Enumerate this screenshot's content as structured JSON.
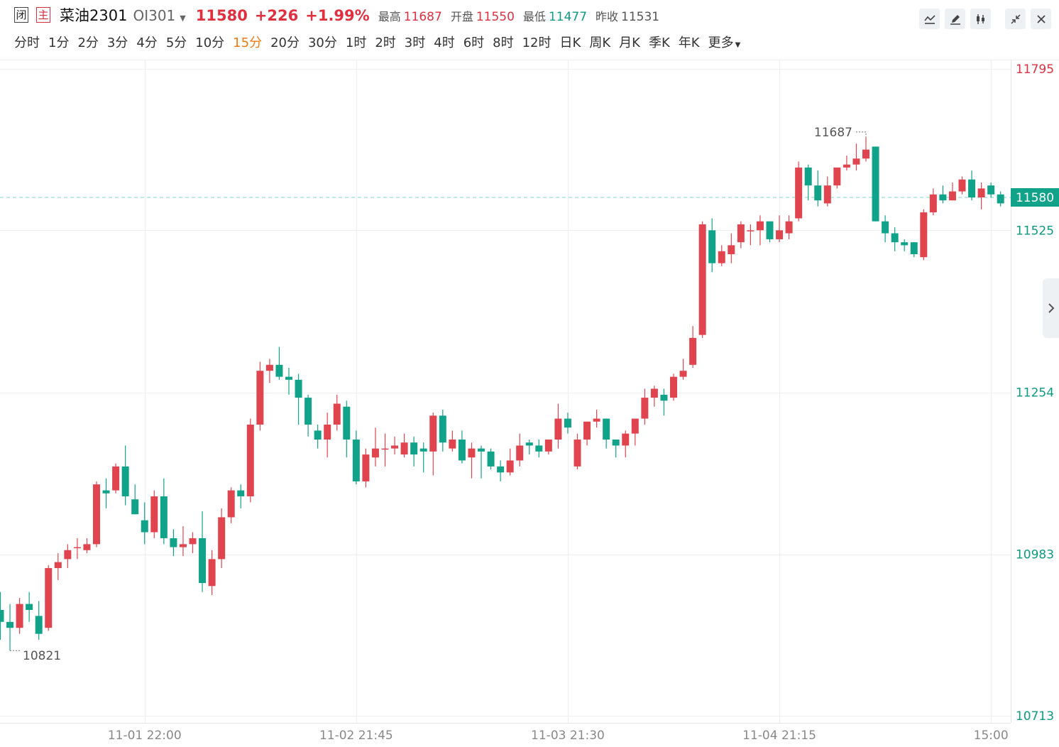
{
  "header": {
    "badge_closed": "闭",
    "badge_main": "主",
    "name": "菜油2301",
    "code": "OI301",
    "price": "11580",
    "change": "+226",
    "change_pct": "+1.99%",
    "high_label": "最高",
    "high_value": "11687",
    "open_label": "开盘",
    "open_value": "11550",
    "low_label": "最低",
    "low_value": "11477",
    "prev_label": "昨收",
    "prev_value": "11531"
  },
  "toolbar": {
    "icons": [
      "line-chart-icon",
      "draw-icon",
      "candlestick-icon",
      "collapse-icon",
      "close-icon"
    ]
  },
  "periods": {
    "items": [
      "分时",
      "1分",
      "2分",
      "3分",
      "4分",
      "5分",
      "10分",
      "15分",
      "20分",
      "30分",
      "1时",
      "2时",
      "3时",
      "4时",
      "6时",
      "8时",
      "12时",
      "日K",
      "周K",
      "月K",
      "季K",
      "年K"
    ],
    "more": "更多",
    "active": "15分"
  },
  "colors": {
    "up": "#e0454f",
    "down": "#10a38a",
    "accent": "#f07a12",
    "grid": "#eeeeee"
  },
  "chart_data": {
    "type": "candlestick",
    "y_ticks": [
      11795,
      11525,
      11254,
      10983,
      10713
    ],
    "ylim": [
      10713,
      11795
    ],
    "x_ticks": [
      "11-01 22:00",
      "11-02 21:45",
      "11-03 21:30",
      "11-04 21:15",
      "15:00"
    ],
    "x_tick_index": [
      15,
      37,
      59,
      81,
      103
    ],
    "current_price": 11580,
    "max_label": "11687",
    "min_label": "10821",
    "grid": true,
    "candles": [
      [
        10890,
        10870,
        10920,
        10840
      ],
      [
        10870,
        10860,
        10900,
        10822
      ],
      [
        10860,
        10900,
        10910,
        10850
      ],
      [
        10900,
        10890,
        10920,
        10870
      ],
      [
        10880,
        10850,
        10905,
        10840
      ],
      [
        10860,
        10960,
        10965,
        10855
      ],
      [
        10960,
        10970,
        10985,
        10940
      ],
      [
        10975,
        10990,
        11000,
        10960
      ],
      [
        10995,
        10995,
        11010,
        10975
      ],
      [
        10990,
        11000,
        11010,
        10985
      ],
      [
        11000,
        11100,
        11105,
        10995
      ],
      [
        11090,
        11085,
        11110,
        11060
      ],
      [
        11090,
        11130,
        11135,
        11085
      ],
      [
        11130,
        11080,
        11165,
        11065
      ],
      [
        11075,
        11050,
        11100,
        11050
      ],
      [
        11040,
        11020,
        11070,
        11000
      ],
      [
        11020,
        11080,
        11090,
        11010
      ],
      [
        11080,
        11010,
        11110,
        11000
      ],
      [
        11010,
        10995,
        11025,
        10980
      ],
      [
        10995,
        11000,
        11030,
        10980
      ],
      [
        11000,
        11010,
        11020,
        10985
      ],
      [
        11010,
        10935,
        11055,
        10920
      ],
      [
        10930,
        10975,
        10990,
        10915
      ],
      [
        10975,
        11045,
        11060,
        10960
      ],
      [
        11045,
        11090,
        11095,
        11035
      ],
      [
        11090,
        11080,
        11100,
        11060
      ],
      [
        11080,
        11200,
        11210,
        11070
      ],
      [
        11200,
        11290,
        11305,
        11190
      ],
      [
        11290,
        11300,
        11310,
        11270
      ],
      [
        11300,
        11280,
        11330,
        11275
      ],
      [
        11280,
        11275,
        11295,
        11250
      ],
      [
        11275,
        11245,
        11285,
        11200
      ],
      [
        11245,
        11200,
        11250,
        11180
      ],
      [
        11190,
        11175,
        11200,
        11160
      ],
      [
        11175,
        11200,
        11220,
        11145
      ],
      [
        11200,
        11235,
        11250,
        11190
      ],
      [
        11230,
        11175,
        11240,
        11145
      ],
      [
        11175,
        11105,
        11190,
        11100
      ],
      [
        11105,
        11150,
        11160,
        11095
      ],
      [
        11145,
        11160,
        11195,
        11130
      ],
      [
        11160,
        11160,
        11185,
        11130
      ],
      [
        11160,
        11165,
        11180,
        11150
      ],
      [
        11150,
        11170,
        11185,
        11145
      ],
      [
        11170,
        11150,
        11180,
        11130
      ],
      [
        11160,
        11155,
        11170,
        11120
      ],
      [
        11155,
        11215,
        11220,
        11115
      ],
      [
        11215,
        11170,
        11225,
        11155
      ],
      [
        11160,
        11175,
        11190,
        11155
      ],
      [
        11175,
        11140,
        11190,
        11135
      ],
      [
        11145,
        11160,
        11170,
        11110
      ],
      [
        11160,
        11155,
        11165,
        11110
      ],
      [
        11155,
        11130,
        11160,
        11125
      ],
      [
        11130,
        11120,
        11140,
        11105
      ],
      [
        11120,
        11140,
        11160,
        11115
      ],
      [
        11140,
        11165,
        11185,
        11130
      ],
      [
        11170,
        11165,
        11175,
        11150
      ],
      [
        11165,
        11155,
        11175,
        11145
      ],
      [
        11155,
        11175,
        11175,
        11150
      ],
      [
        11175,
        11210,
        11235,
        11160
      ],
      [
        11210,
        11195,
        11220,
        11185
      ],
      [
        11130,
        11175,
        11185,
        11125
      ],
      [
        11175,
        11205,
        11205,
        11165
      ],
      [
        11205,
        11210,
        11225,
        11195
      ],
      [
        11210,
        11175,
        11210,
        11160
      ],
      [
        11175,
        11165,
        11170,
        11145
      ],
      [
        11165,
        11185,
        11190,
        11145
      ],
      [
        11185,
        11210,
        11210,
        11165
      ],
      [
        11210,
        11245,
        11260,
        11200
      ],
      [
        11245,
        11260,
        11265,
        11230
      ],
      [
        11250,
        11240,
        11260,
        11215
      ],
      [
        11245,
        11280,
        11285,
        11240
      ],
      [
        11280,
        11290,
        11310,
        11275
      ],
      [
        11300,
        11345,
        11365,
        11295
      ],
      [
        11350,
        11535,
        11540,
        11345
      ],
      [
        11525,
        11470,
        11545,
        11455
      ],
      [
        11470,
        11490,
        11500,
        11465
      ],
      [
        11485,
        11500,
        11520,
        11470
      ],
      [
        11505,
        11535,
        11540,
        11495
      ],
      [
        11525,
        11525,
        11535,
        11500
      ],
      [
        11525,
        11540,
        11550,
        11500
      ],
      [
        11540,
        11510,
        11535,
        11505
      ],
      [
        11510,
        11525,
        11550,
        11505
      ],
      [
        11520,
        11540,
        11550,
        11510
      ],
      [
        11545,
        11630,
        11640,
        11540
      ],
      [
        11630,
        11600,
        11635,
        11575
      ],
      [
        11600,
        11575,
        11625,
        11565
      ],
      [
        11570,
        11600,
        11615,
        11565
      ],
      [
        11600,
        11630,
        11630,
        11595
      ],
      [
        11630,
        11635,
        11650,
        11625
      ],
      [
        11635,
        11645,
        11670,
        11625
      ],
      [
        11645,
        11660,
        11680,
        11640
      ],
      [
        11665,
        11540,
        11665,
        11540
      ],
      [
        11540,
        11520,
        11550,
        11505
      ],
      [
        11520,
        11505,
        11530,
        11490
      ],
      [
        11505,
        11500,
        11510,
        11490
      ],
      [
        11505,
        11485,
        11505,
        11480
      ],
      [
        11480,
        11555,
        11560,
        11475
      ],
      [
        11555,
        11585,
        11595,
        11550
      ],
      [
        11585,
        11575,
        11600,
        11570
      ],
      [
        11575,
        11590,
        11605,
        11575
      ],
      [
        11590,
        11610,
        11615,
        11585
      ],
      [
        11610,
        11580,
        11625,
        11575
      ],
      [
        11580,
        11595,
        11605,
        11560
      ],
      [
        11600,
        11585,
        11605,
        11580
      ],
      [
        11585,
        11570,
        11590,
        11565
      ]
    ]
  }
}
